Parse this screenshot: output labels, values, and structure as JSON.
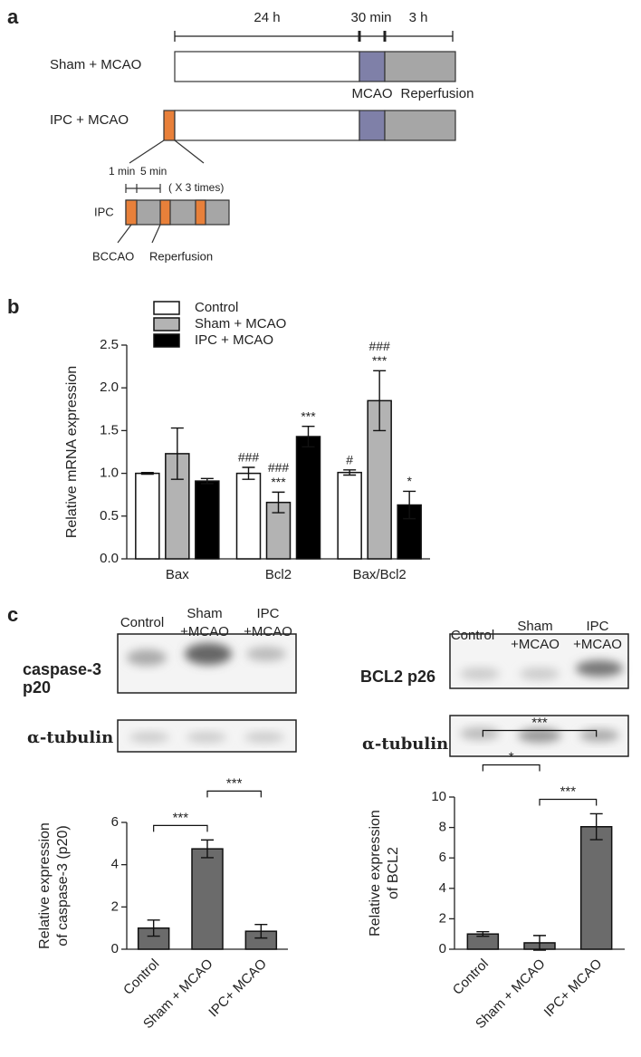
{
  "panel_a": {
    "label": "a",
    "timeline": [
      "24 h",
      "30 min",
      "3 h"
    ],
    "rows": [
      "Sham + MCAO",
      "IPC + MCAO"
    ],
    "phases": [
      "MCAO",
      "Reperfusion"
    ],
    "ipc": {
      "durations": [
        "1 min",
        "5 min"
      ],
      "repeat": "( X 3 times)",
      "label": "IPC",
      "phases": [
        "BCCAO",
        "Reperfusion"
      ]
    }
  },
  "panel_c": {
    "label": "c",
    "left_blot": {
      "columns": [
        [
          "Control"
        ],
        [
          "Sham",
          "+MCAO"
        ],
        [
          "IPC",
          "+MCAO"
        ]
      ],
      "rows": [
        [
          "caspase-3",
          "p20"
        ],
        [
          "α-tubulin"
        ]
      ]
    },
    "right_blot": {
      "columns": [
        [
          "Control"
        ],
        [
          "Sham",
          "+MCAO"
        ],
        [
          "IPC",
          "+MCAO"
        ]
      ],
      "rows": [
        [
          "BCL2 p26"
        ],
        [
          "α-tubulin"
        ]
      ]
    }
  },
  "chart_data": [
    {
      "type": "bar",
      "label": "b",
      "ylabel": [
        "Relative mRNA expression"
      ],
      "categories": [
        "Bax",
        "Bcl2",
        "Bax/Bcl2"
      ],
      "series": [
        {
          "name": "Control",
          "color": "#ffffff",
          "values": [
            1.0,
            1.0,
            1.01
          ],
          "errors": [
            0.01,
            0.07,
            0.03
          ]
        },
        {
          "name": "Sham + MCAO",
          "color": "#b3b3b3",
          "values": [
            1.23,
            0.66,
            1.85
          ],
          "errors": [
            0.3,
            0.12,
            0.35
          ]
        },
        {
          "name": "IPC + MCAO",
          "color": "#000000",
          "values": [
            0.91,
            1.43,
            0.63
          ],
          "errors": [
            0.03,
            0.12,
            0.16
          ]
        }
      ],
      "ylim": [
        0,
        2.5
      ],
      "yticks": [
        {
          "value": 0,
          "label": "0.0"
        },
        0.5,
        {
          "value": 1,
          "label": "1.0"
        },
        1.5,
        {
          "value": 2,
          "label": "2.0"
        },
        2.5
      ],
      "annotations": [
        {
          "series": 0,
          "category": 1,
          "text": [
            "###"
          ]
        },
        {
          "series": 0,
          "category": 2,
          "text": [
            "#"
          ]
        },
        {
          "series": 1,
          "category": 1,
          "text": [
            "###",
            "***"
          ]
        },
        {
          "series": 1,
          "category": 2,
          "text": [
            "###",
            "***"
          ]
        },
        {
          "series": 2,
          "category": 1,
          "text": [
            "***"
          ]
        },
        {
          "series": 2,
          "category": 2,
          "text": [
            "*"
          ]
        }
      ]
    },
    {
      "type": "bar",
      "ylabel": [
        "Relative expression",
        "of caspase-3 (p20)"
      ],
      "categories": [
        "Control",
        "Sham + MCAO",
        "IPC+ MCAO"
      ],
      "values": [
        1.0,
        4.75,
        0.85
      ],
      "errors": [
        0.38,
        0.42,
        0.32
      ],
      "color": "#6b6b6b",
      "ylim": [
        0,
        6
      ],
      "yticks": [
        0,
        2,
        4,
        6
      ],
      "brackets": [
        {
          "from": 0,
          "to": 1,
          "text": "***"
        },
        {
          "from": 1,
          "to": 2,
          "text": "***"
        }
      ]
    },
    {
      "type": "bar",
      "ylabel": [
        "Relative expression",
        "of BCL2"
      ],
      "categories": [
        "Control",
        "Sham + MCAO",
        "IPC+ MCAO"
      ],
      "values": [
        1.0,
        0.42,
        8.05
      ],
      "errors": [
        0.15,
        0.48,
        0.85
      ],
      "color": "#6b6b6b",
      "ylim": [
        0,
        10
      ],
      "yticks": [
        0,
        2,
        4,
        6,
        8,
        10
      ],
      "brackets": [
        {
          "from": 0,
          "to": 2,
          "text": "***"
        },
        {
          "from": 1,
          "to": 2,
          "text": "***"
        },
        {
          "from": 0,
          "to": 1,
          "text": "*"
        }
      ]
    }
  ]
}
